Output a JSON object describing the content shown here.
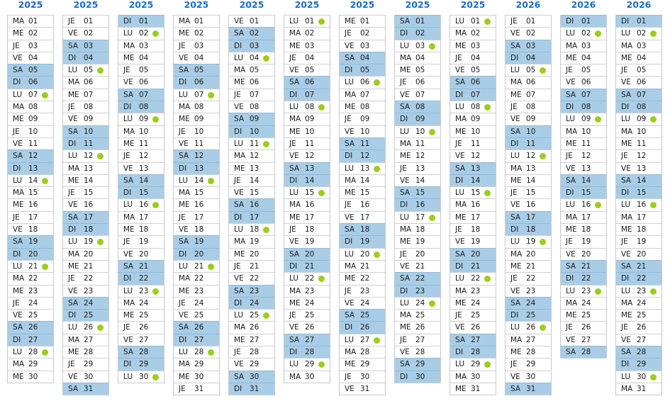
{
  "colors": {
    "year": "#1b6ec2",
    "weekend": "#a9cde6",
    "dot": "#9ccc1e"
  },
  "weekend_days": [
    "SA",
    "DI"
  ],
  "dot_day": "LU",
  "months": [
    {
      "year": "2025",
      "days": [
        "MA 01",
        "ME 02",
        "JE 03",
        "VE 04",
        "SA 05",
        "DI 06",
        "LU 07",
        "MA 08",
        "ME 09",
        "JE 10",
        "VE 11",
        "SA 12",
        "DI 13",
        "LU 14",
        "MA 15",
        "ME 16",
        "JE 17",
        "VE 18",
        "SA 19",
        "DI 20",
        "LU 21",
        "MA 22",
        "ME 23",
        "JE 24",
        "VE 25",
        "SA 26",
        "DI 27",
        "LU 28",
        "MA 29",
        "ME 30"
      ]
    },
    {
      "year": "2025",
      "days": [
        "JE 01",
        "VE 02",
        "SA 03",
        "DI 04",
        "LU 05",
        "MA 06",
        "ME 07",
        "JE 08",
        "VE 09",
        "SA 10",
        "DI 11",
        "LU 12",
        "MA 13",
        "ME 14",
        "JE 15",
        "VE 16",
        "SA 17",
        "DI 18",
        "LU 19",
        "MA 20",
        "ME 21",
        "JE 22",
        "VE 23",
        "SA 24",
        "DI 25",
        "LU 26",
        "MA 27",
        "ME 28",
        "JE 29",
        "VE 30",
        "SA 31"
      ]
    },
    {
      "year": "2025",
      "days": [
        "DI 01",
        "LU 02",
        "MA 03",
        "ME 04",
        "JE 05",
        "VE 06",
        "SA 07",
        "DI 08",
        "LU 09",
        "MA 10",
        "ME 11",
        "JE 12",
        "VE 13",
        "SA 14",
        "DI 15",
        "LU 16",
        "MA 17",
        "ME 18",
        "JE 19",
        "VE 20",
        "SA 21",
        "DI 22",
        "LU 23",
        "MA 24",
        "ME 25",
        "JE 26",
        "VE 27",
        "SA 28",
        "DI 29",
        "LU 30"
      ]
    },
    {
      "year": "2025",
      "days": [
        "MA 01",
        "ME 02",
        "JE 03",
        "VE 04",
        "SA 05",
        "DI 06",
        "LU 07",
        "MA 08",
        "ME 09",
        "JE 10",
        "VE 11",
        "SA 12",
        "DI 13",
        "LU 14",
        "MA 15",
        "ME 16",
        "JE 17",
        "VE 18",
        "SA 19",
        "DI 20",
        "LU 21",
        "MA 22",
        "ME 23",
        "JE 24",
        "VE 25",
        "SA 26",
        "DI 27",
        "LU 28",
        "MA 29",
        "ME 30",
        "JE 31"
      ]
    },
    {
      "year": "2025",
      "days": [
        "VE 01",
        "SA 02",
        "DI 03",
        "LU 04",
        "MA 05",
        "ME 06",
        "JE 07",
        "VE 08",
        "SA 09",
        "DI 10",
        "LU 11",
        "MA 12",
        "ME 13",
        "JE 14",
        "VE 15",
        "SA 16",
        "DI 17",
        "LU 18",
        "MA 19",
        "ME 20",
        "JE 21",
        "VE 22",
        "SA 23",
        "DI 24",
        "LU 25",
        "MA 26",
        "ME 27",
        "JE 28",
        "VE 29",
        "SA 30",
        "DI 31"
      ]
    },
    {
      "year": "2025",
      "days": [
        "LU 01",
        "MA 02",
        "ME 03",
        "JE 04",
        "VE 05",
        "SA 06",
        "DI 07",
        "LU 08",
        "MA 09",
        "ME 10",
        "JE 11",
        "VE 12",
        "SA 13",
        "DI 14",
        "LU 15",
        "MA 16",
        "ME 17",
        "JE 18",
        "VE 19",
        "SA 20",
        "DI 21",
        "LU 22",
        "MA 23",
        "ME 24",
        "JE 25",
        "VE 26",
        "SA 27",
        "DI 28",
        "LU 29",
        "MA 30"
      ]
    },
    {
      "year": "2025",
      "days": [
        "ME 01",
        "JE 02",
        "VE 03",
        "SA 04",
        "DI 05",
        "LU 06",
        "MA 07",
        "ME 08",
        "JE 09",
        "VE 10",
        "SA 11",
        "DI 12",
        "LU 13",
        "MA 14",
        "ME 15",
        "JE 16",
        "VE 17",
        "SA 18",
        "DI 19",
        "LU 20",
        "MA 21",
        "ME 22",
        "JE 23",
        "VE 24",
        "SA 25",
        "DI 26",
        "LU 27",
        "MA 28",
        "ME 29",
        "JE 30",
        "VE 31"
      ]
    },
    {
      "year": "2025",
      "days": [
        "SA 01",
        "DI 02",
        "LU 03",
        "MA 04",
        "ME 05",
        "JE 06",
        "VE 07",
        "SA 08",
        "DI 09",
        "LU 10",
        "MA 11",
        "ME 12",
        "JE 13",
        "VE 14",
        "SA 15",
        "DI 16",
        "LU 17",
        "MA 18",
        "ME 19",
        "JE 20",
        "VE 21",
        "SA 22",
        "DI 23",
        "LU 24",
        "MA 25",
        "ME 26",
        "JE 27",
        "VE 28",
        "SA 29",
        "DI 30"
      ]
    },
    {
      "year": "2025",
      "days": [
        "LU 01",
        "MA 02",
        "ME 03",
        "JE 04",
        "VE 05",
        "SA 06",
        "DI 07",
        "LU 08",
        "MA 09",
        "ME 10",
        "JE 11",
        "VE 12",
        "SA 13",
        "DI 14",
        "LU 15",
        "MA 16",
        "ME 17",
        "JE 18",
        "VE 19",
        "SA 20",
        "DI 21",
        "LU 22",
        "MA 23",
        "ME 24",
        "JE 25",
        "VE 26",
        "SA 27",
        "DI 28",
        "LU 29",
        "MA 30",
        "ME 31"
      ]
    },
    {
      "year": "2026",
      "days": [
        "JE 01",
        "VE 02",
        "SA 03",
        "DI 04",
        "LU 05",
        "MA 06",
        "ME 07",
        "JE 08",
        "VE 09",
        "SA 10",
        "DI 11",
        "LU 12",
        "MA 13",
        "ME 14",
        "JE 15",
        "VE 16",
        "SA 17",
        "DI 18",
        "LU 19",
        "MA 20",
        "ME 21",
        "JE 22",
        "VE 23",
        "SA 24",
        "DI 25",
        "LU 26",
        "MA 27",
        "ME 28",
        "JE 29",
        "VE 30",
        "SA 31"
      ]
    },
    {
      "year": "2026",
      "days": [
        "DI 01",
        "LU 02",
        "MA 03",
        "ME 04",
        "JE 05",
        "VE 06",
        "SA 07",
        "DI 08",
        "LU 09",
        "MA 10",
        "ME 11",
        "JE 12",
        "VE 13",
        "SA 14",
        "DI 15",
        "LU 16",
        "MA 17",
        "ME 18",
        "JE 19",
        "VE 20",
        "SA 21",
        "DI 22",
        "LU 23",
        "MA 24",
        "ME 25",
        "JE 26",
        "VE 27",
        "SA 28"
      ]
    },
    {
      "year": "2026",
      "days": [
        "DI 01",
        "LU 02",
        "MA 03",
        "ME 04",
        "JE 05",
        "VE 06",
        "SA 07",
        "DI 08",
        "LU 09",
        "MA 10",
        "ME 11",
        "JE 12",
        "VE 13",
        "SA 14",
        "DI 15",
        "LU 16",
        "MA 17",
        "ME 18",
        "JE 19",
        "VE 20",
        "SA 21",
        "DI 22",
        "LU 23",
        "MA 24",
        "ME 25",
        "JE 26",
        "VE 27",
        "SA 28",
        "DI 29",
        "LU 30",
        "MA 31"
      ]
    }
  ]
}
